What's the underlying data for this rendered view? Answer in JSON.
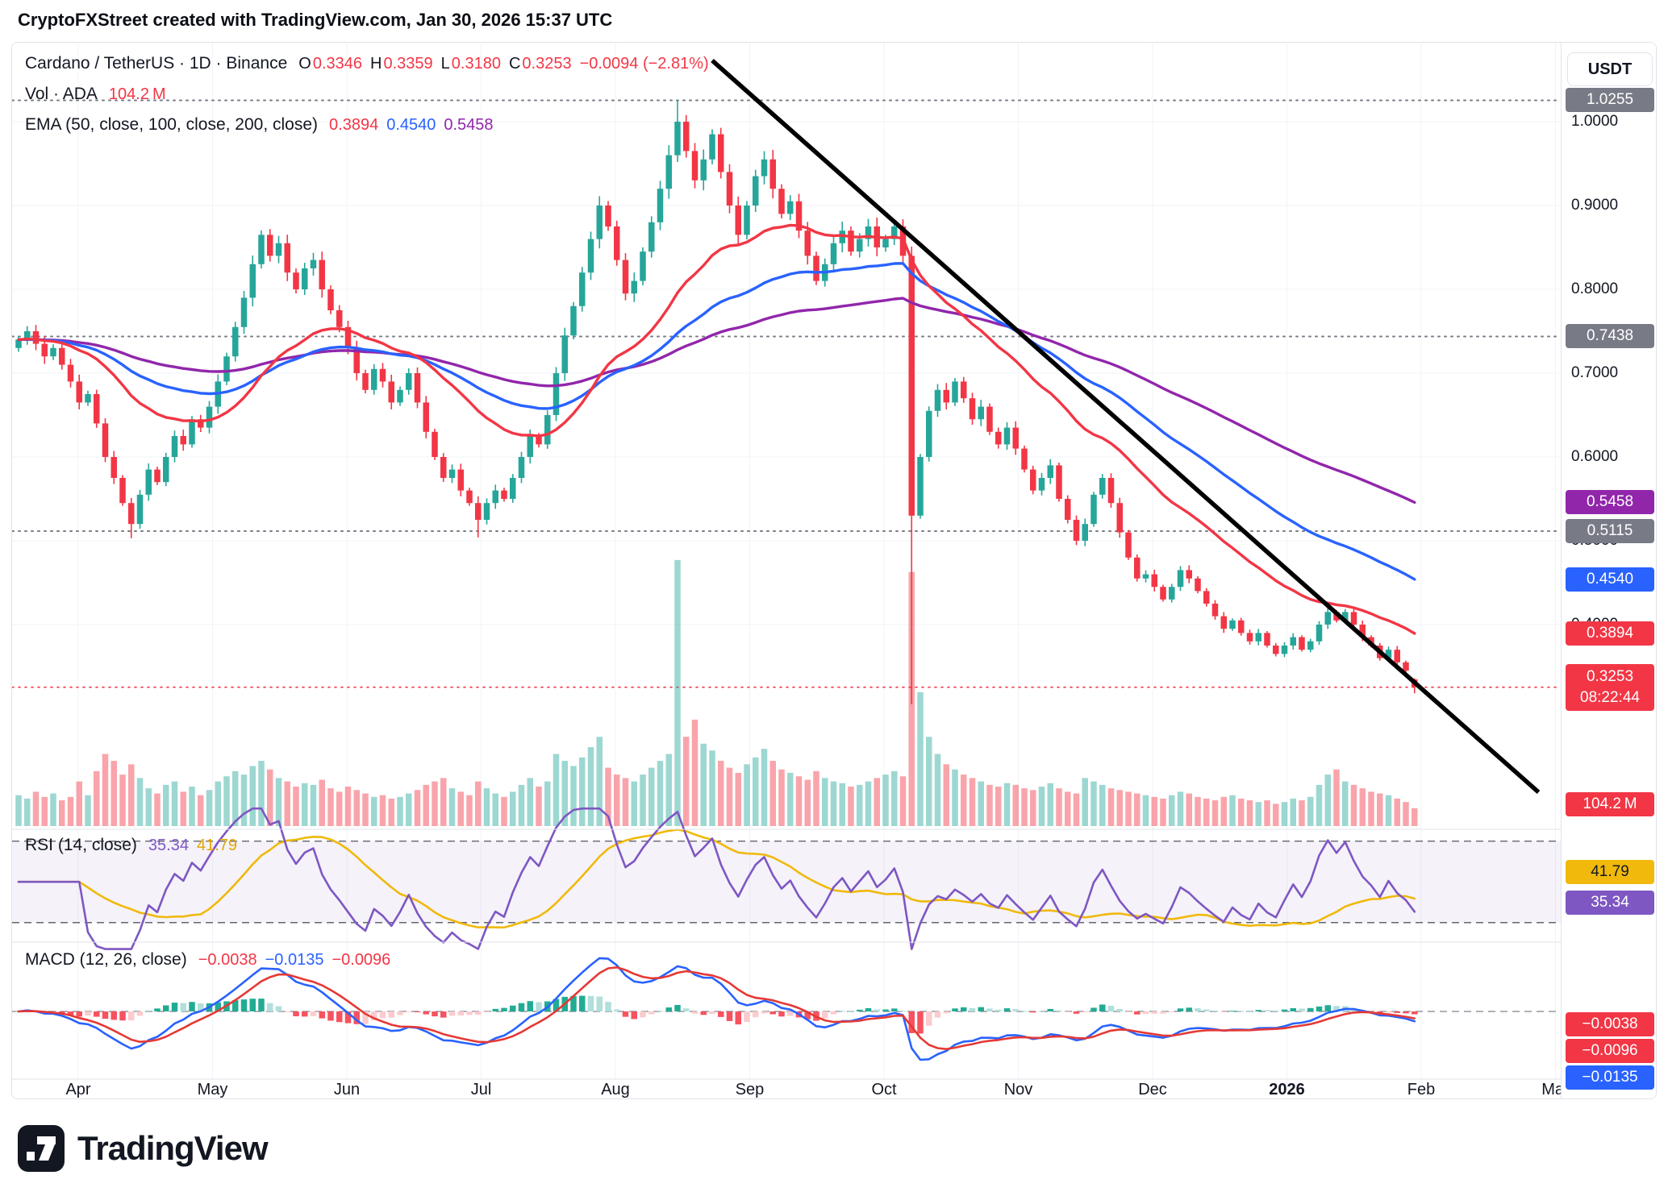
{
  "colors": {
    "up": "#26a69a",
    "down": "#f23645",
    "red": "#f23645",
    "blue": "#2962ff",
    "purple": "#9126ab",
    "rsi_purple": "#7e57c2",
    "rsi_yellow": "#f0b90b",
    "gray_badge": "#787b86",
    "text": "#131722",
    "grid": "#f2f3f7",
    "border": "#e0e3eb",
    "trendline": "#000000"
  },
  "header": {
    "credit": "CryptoFXStreet created with TradingView.com, Jan 30, 2026 15:37 UTC"
  },
  "legend": {
    "title": "Cardano / TetherUS · 1D · Binance",
    "ohlc": {
      "o_label": "O",
      "o": "0.3346",
      "h_label": "H",
      "h": "0.3359",
      "l_label": "L",
      "l": "0.3180",
      "c_label": "C",
      "c": "0.3253",
      "change": "−0.0094 (−2.81%)"
    },
    "vol": {
      "label": "Vol · ADA",
      "value": "104.2 M"
    },
    "ema": {
      "label": "EMA (50, close, 100, close, 200, close)",
      "v50": "0.3894",
      "v100": "0.4540",
      "v200": "0.5458"
    },
    "rsi": {
      "label": "RSI (14, close)",
      "value": "35.34",
      "ma_value": "41.79"
    },
    "macd": {
      "label": "MACD (12, 26, close)",
      "hist": "−0.0038",
      "macd": "−0.0135",
      "signal": "−0.0096"
    }
  },
  "axis": {
    "currency": "USDT",
    "price_ticks": [
      {
        "label": "1.0000",
        "value": 1.0
      },
      {
        "label": "0.9000",
        "value": 0.9
      },
      {
        "label": "0.8000",
        "value": 0.8
      },
      {
        "label": "0.7000",
        "value": 0.7
      },
      {
        "label": "0.6000",
        "value": 0.6
      },
      {
        "label": "0.5000",
        "value": 0.5
      },
      {
        "label": "0.4000",
        "value": 0.4
      }
    ],
    "badges": {
      "level_top": "1.0255",
      "level_mid": "0.7438",
      "ema200": "0.5458",
      "level_low": "0.5115",
      "ema100": "0.4540",
      "ema50": "0.3894",
      "price": "0.3253",
      "countdown": "08:22:44",
      "volume": "104.2 M",
      "rsi_ma": "41.79",
      "rsi": "35.34",
      "macd_hist": "−0.0038",
      "macd_signal": "−0.0096",
      "macd": "−0.0135"
    },
    "time_ticks": [
      "Apr",
      "May",
      "Jun",
      "Jul",
      "Aug",
      "Sep",
      "Oct",
      "Nov",
      "Dec",
      "2026",
      "Feb",
      "Mar"
    ],
    "time_bold_index": 9
  },
  "logo": {
    "brand": "TradingView"
  },
  "chart_data": {
    "type": "candlestick",
    "title": "Cardano / TetherUS · 1D · Binance",
    "symbol": "ADA/USDT",
    "interval": "1D",
    "exchange": "Binance",
    "quote_currency": "USDT",
    "price_axis": {
      "visible_min": 0.2,
      "visible_max": 1.09,
      "ticks": [
        1.0,
        0.9,
        0.8,
        0.7,
        0.6,
        0.5,
        0.4
      ]
    },
    "time_axis": {
      "months": [
        "Apr",
        "May",
        "Jun",
        "Jul",
        "Aug",
        "Sep",
        "Oct",
        "Nov",
        "Dec",
        "2026",
        "Feb",
        "Mar"
      ],
      "days_per_candle": 2
    },
    "first_open": 0.73,
    "closes": [
      0.74,
      0.75,
      0.735,
      0.72,
      0.73,
      0.71,
      0.69,
      0.665,
      0.675,
      0.64,
      0.6,
      0.575,
      0.545,
      0.52,
      0.555,
      0.585,
      0.57,
      0.6,
      0.625,
      0.615,
      0.645,
      0.635,
      0.66,
      0.69,
      0.72,
      0.755,
      0.79,
      0.83,
      0.865,
      0.84,
      0.855,
      0.82,
      0.8,
      0.825,
      0.835,
      0.8,
      0.775,
      0.755,
      0.73,
      0.7,
      0.68,
      0.705,
      0.69,
      0.665,
      0.68,
      0.7,
      0.665,
      0.63,
      0.6,
      0.575,
      0.585,
      0.56,
      0.545,
      0.525,
      0.545,
      0.56,
      0.55,
      0.575,
      0.6,
      0.625,
      0.615,
      0.65,
      0.7,
      0.745,
      0.78,
      0.82,
      0.86,
      0.9,
      0.875,
      0.835,
      0.795,
      0.81,
      0.845,
      0.88,
      0.92,
      0.96,
      1.0,
      0.965,
      0.93,
      0.955,
      0.985,
      0.94,
      0.9,
      0.865,
      0.9,
      0.935,
      0.955,
      0.92,
      0.89,
      0.905,
      0.87,
      0.84,
      0.81,
      0.83,
      0.855,
      0.87,
      0.845,
      0.86,
      0.875,
      0.85,
      0.86,
      0.875,
      0.84,
      0.53,
      0.6,
      0.655,
      0.68,
      0.665,
      0.69,
      0.67,
      0.645,
      0.66,
      0.63,
      0.615,
      0.635,
      0.61,
      0.585,
      0.56,
      0.575,
      0.59,
      0.55,
      0.525,
      0.5,
      0.52,
      0.555,
      0.575,
      0.545,
      0.51,
      0.48,
      0.455,
      0.46,
      0.445,
      0.43,
      0.445,
      0.465,
      0.455,
      0.44,
      0.425,
      0.41,
      0.395,
      0.405,
      0.39,
      0.38,
      0.39,
      0.375,
      0.365,
      0.375,
      0.385,
      0.37,
      0.38,
      0.4,
      0.415,
      0.405,
      0.415,
      0.4,
      0.385,
      0.375,
      0.36,
      0.37,
      0.355,
      0.345,
      0.3253
    ],
    "volumes_millions": [
      180,
      160,
      200,
      170,
      190,
      150,
      170,
      260,
      180,
      320,
      420,
      380,
      300,
      360,
      280,
      220,
      190,
      240,
      260,
      200,
      230,
      180,
      210,
      260,
      290,
      320,
      300,
      350,
      380,
      330,
      280,
      260,
      230,
      250,
      240,
      270,
      220,
      200,
      230,
      210,
      190,
      170,
      180,
      160,
      170,
      190,
      210,
      240,
      260,
      280,
      220,
      200,
      180,
      260,
      220,
      190,
      170,
      200,
      240,
      280,
      230,
      260,
      420,
      380,
      350,
      400,
      460,
      520,
      340,
      300,
      280,
      260,
      300,
      340,
      380,
      420,
      1550,
      520,
      620,
      480,
      440,
      380,
      340,
      310,
      360,
      400,
      450,
      380,
      330,
      310,
      290,
      270,
      320,
      280,
      260,
      250,
      230,
      240,
      260,
      280,
      300,
      320,
      290,
      1480,
      780,
      520,
      420,
      360,
      330,
      300,
      280,
      260,
      240,
      230,
      250,
      240,
      220,
      210,
      230,
      250,
      220,
      200,
      190,
      280,
      260,
      240,
      220,
      210,
      200,
      190,
      180,
      170,
      160,
      180,
      200,
      190,
      170,
      160,
      150,
      170,
      180,
      160,
      150,
      140,
      150,
      130,
      140,
      160,
      150,
      170,
      240,
      300,
      330,
      260,
      240,
      220,
      200,
      190,
      180,
      160,
      140,
      104.2
    ],
    "candle_overrides": {
      "13": [
        0.545,
        0.551,
        0.503,
        0.52
      ],
      "53": [
        0.545,
        0.553,
        0.504,
        0.525
      ],
      "76": [
        0.96,
        1.025,
        0.952,
        1.0
      ],
      "103": [
        0.84,
        0.851,
        0.305,
        0.53
      ],
      "161": [
        0.3346,
        0.3359,
        0.318,
        0.3253
      ]
    },
    "levels": {
      "gray_dotted": [
        1.0255,
        0.7438,
        0.5115
      ],
      "current_price_dotted": 0.3253
    },
    "trendline": {
      "from_index": 80,
      "from_price": 1.073,
      "to_index": 175.3,
      "to_price": 0.2
    },
    "emas": [
      {
        "period_daily": 50,
        "color_key": "red",
        "last": 0.3894
      },
      {
        "period_daily": 100,
        "color_key": "blue",
        "last": 0.454
      },
      {
        "period_daily": 200,
        "color_key": "purple",
        "last": 0.5458
      }
    ],
    "rsi": {
      "period": 14,
      "last": 35.34,
      "ma_last": 41.79,
      "upper_level": 70,
      "lower_level": 30
    },
    "macd": {
      "fast": 12,
      "slow": 26,
      "signal_period": 9,
      "macd_last": -0.0135,
      "signal_last": -0.0096,
      "hist_last": -0.0038
    },
    "last_candle": {
      "open": 0.3346,
      "high": 0.3359,
      "low": 0.318,
      "close": 0.3253,
      "change": -0.0094,
      "change_pct": -2.81,
      "volume_label": "104.2M",
      "countdown": "08:22:44"
    }
  }
}
